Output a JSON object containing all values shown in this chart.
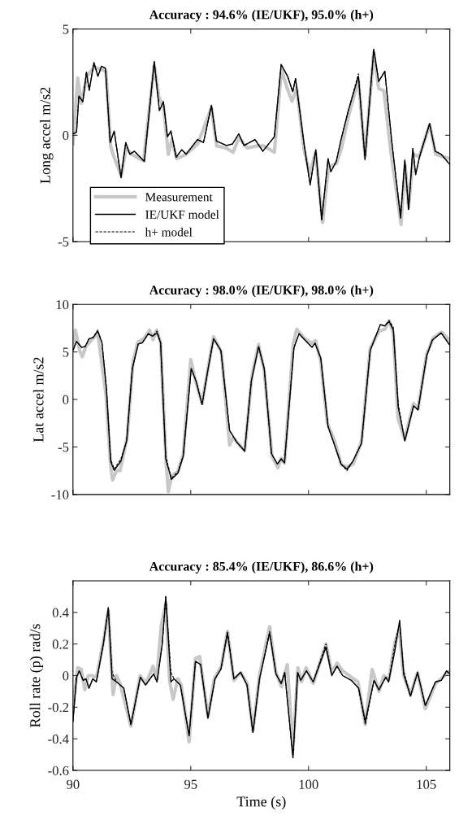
{
  "chart_data": [
    {
      "type": "line",
      "title": "Accuracy : 94.6% (IE/UKF), 95.0% (h+)",
      "ylabel": "Long accel m/s2",
      "xlim": [
        90,
        106
      ],
      "xticks": [
        90,
        95,
        100,
        105
      ],
      "ylim": [
        -5,
        5
      ],
      "yticks": [
        -5,
        0,
        5
      ],
      "tick_labels": "y",
      "legend": "bottom left",
      "grid": false,
      "series": [
        {
          "name": "Measurement",
          "color": "#c8c8c8",
          "line_style": "solid",
          "x": [
            90.0,
            90.2,
            90.35,
            90.6,
            90.9,
            91.2,
            91.4,
            91.6,
            91.7,
            92.05,
            92.25,
            92.5,
            93.0,
            93.45,
            93.65,
            93.85,
            94.05,
            94.2,
            94.4,
            94.8,
            95.3,
            95.88,
            96.1,
            96.5,
            96.8,
            97.05,
            97.4,
            97.8,
            98.1,
            98.55,
            98.85,
            99.1,
            99.3,
            99.5,
            99.8,
            100.05,
            100.3,
            100.6,
            100.85,
            101.2,
            101.4,
            101.7,
            102.12,
            102.4,
            102.77,
            102.98,
            103.2,
            103.5,
            103.93,
            104.1,
            104.25,
            104.45,
            104.7,
            105.15,
            105.4,
            105.7,
            106.0
          ],
          "values": [
            -0.4,
            2.7,
            1.5,
            2.8,
            3.2,
            3.1,
            3.0,
            -0.5,
            -0.9,
            -1.9,
            -0.6,
            -0.9,
            -1.2,
            3.3,
            1.8,
            1.3,
            -0.9,
            -0.2,
            -1.1,
            -0.9,
            -0.4,
            1.3,
            -0.5,
            -0.6,
            -0.8,
            -0.1,
            -0.6,
            -0.5,
            -0.5,
            -0.8,
            3.1,
            2.2,
            1.6,
            2.2,
            -0.6,
            -1.8,
            -0.8,
            -4.1,
            -1.5,
            -1.3,
            -0.6,
            0.9,
            2.6,
            -1.0,
            3.9,
            2.2,
            2.1,
            -0.8,
            -4.2,
            -1.4,
            -3.4,
            -0.9,
            -1.0,
            0.5,
            -0.9,
            -1.0,
            -1.1
          ]
        },
        {
          "name": "IE/UKF model",
          "color": "#000000",
          "line_style": "solid",
          "x": [
            90.0,
            90.15,
            90.25,
            90.42,
            90.57,
            90.69,
            90.89,
            91.06,
            91.21,
            91.38,
            91.58,
            91.75,
            92.04,
            92.24,
            92.41,
            92.61,
            93.03,
            93.45,
            93.67,
            93.84,
            94.01,
            94.16,
            94.38,
            94.62,
            94.8,
            95.29,
            95.54,
            95.88,
            96.09,
            96.52,
            96.77,
            97.04,
            97.26,
            97.73,
            98.06,
            98.55,
            98.84,
            99.11,
            99.33,
            99.45,
            99.82,
            100.07,
            100.31,
            100.56,
            100.83,
            100.95,
            101.18,
            101.38,
            101.69,
            102.12,
            102.4,
            102.77,
            102.98,
            103.24,
            103.54,
            103.91,
            104.09,
            104.25,
            104.43,
            104.55,
            104.71,
            105.14,
            105.38,
            105.63,
            106.0
          ],
          "values": [
            0.07,
            0.14,
            1.85,
            1.58,
            2.97,
            2.12,
            3.42,
            2.78,
            3.25,
            3.15,
            -0.34,
            0.2,
            -1.99,
            -0.34,
            -0.89,
            -0.75,
            -1.23,
            3.47,
            1.16,
            1.58,
            -0.07,
            0.2,
            -1.03,
            -0.68,
            -0.89,
            -0.2,
            -0.34,
            1.41,
            -0.27,
            -0.48,
            -0.41,
            0.07,
            -0.48,
            -0.2,
            -0.75,
            -0.07,
            3.33,
            2.78,
            2.05,
            2.67,
            -0.48,
            -2.33,
            -0.68,
            -3.97,
            -1.1,
            -1.71,
            -1.23,
            -0.2,
            1.16,
            2.78,
            -1.1,
            4.04,
            2.53,
            3.01,
            -0.34,
            -3.9,
            -1.16,
            -3.49,
            -0.62,
            -1.85,
            -1.03,
            0.55,
            -0.75,
            -0.89,
            -1.37
          ]
        },
        {
          "name": "h+ model",
          "color": "#000000",
          "line_style": "dashed",
          "x": [
            90.0,
            90.15,
            90.25,
            90.42,
            90.57,
            90.69,
            90.89,
            91.06,
            91.21,
            91.38,
            91.58,
            91.75,
            92.04,
            92.24,
            92.41,
            92.61,
            93.03,
            93.45,
            93.67,
            93.84,
            94.01,
            94.16,
            94.38,
            94.62,
            94.8,
            95.29,
            95.54,
            95.88,
            96.09,
            96.52,
            96.77,
            97.04,
            97.26,
            97.73,
            98.06,
            98.55,
            98.84,
            99.11,
            99.33,
            99.45,
            99.82,
            100.07,
            100.31,
            100.56,
            100.83,
            100.95,
            101.18,
            101.38,
            101.69,
            102.12,
            102.4,
            102.77,
            102.98,
            103.24,
            103.54,
            103.91,
            104.09,
            104.25,
            104.43,
            104.55,
            104.71,
            105.14,
            105.38,
            105.63,
            106.0
          ],
          "values": [
            0.07,
            0.14,
            1.85,
            1.58,
            2.97,
            2.12,
            3.42,
            2.78,
            3.25,
            3.15,
            -0.34,
            0.2,
            -1.99,
            -0.34,
            -0.89,
            -0.75,
            -1.23,
            3.47,
            1.16,
            1.58,
            -0.07,
            0.2,
            -1.03,
            -0.68,
            -0.89,
            -0.2,
            -0.34,
            1.41,
            -0.27,
            -0.48,
            -0.41,
            0.07,
            -0.48,
            -0.2,
            -0.75,
            -0.07,
            3.33,
            2.78,
            2.05,
            2.67,
            -0.48,
            -2.33,
            -0.68,
            -4.0,
            -1.1,
            -1.71,
            -1.23,
            -0.2,
            1.16,
            2.9,
            -1.2,
            4.04,
            2.53,
            3.01,
            -0.34,
            -3.8,
            -1.16,
            -3.49,
            -0.62,
            -1.85,
            -1.03,
            0.55,
            -0.75,
            -0.89,
            -1.37
          ]
        }
      ]
    },
    {
      "type": "line",
      "title": "Accuracy : 98.0% (IE/UKF), 98.0% (h+)",
      "ylabel": "Lat accel m/s2",
      "xlim": [
        90,
        106
      ],
      "xticks": [
        90,
        95,
        100,
        105
      ],
      "ylim": [
        -10,
        10
      ],
      "yticks": [
        -10,
        -5,
        0,
        5,
        10
      ],
      "tick_labels": "y",
      "grid": false,
      "series": [
        {
          "color": "#c8c8c8",
          "line_style": "solid",
          "x": [
            90.0,
            90.1,
            90.3,
            90.4,
            90.55,
            90.7,
            91.05,
            91.4,
            91.6,
            91.68,
            91.85,
            92.0,
            92.3,
            92.55,
            92.75,
            93.05,
            93.25,
            93.4,
            93.55,
            93.72,
            93.95,
            94.05,
            94.2,
            94.45,
            94.68,
            95.0,
            95.2,
            95.48,
            95.75,
            95.97,
            96.3,
            96.65,
            96.8,
            97.0,
            97.29,
            97.6,
            97.88,
            98.12,
            98.45,
            98.7,
            98.84,
            98.98,
            99.35,
            99.5,
            99.8,
            100.15,
            100.3,
            100.52,
            100.8,
            101.1,
            101.4,
            101.65,
            101.9,
            102.25,
            102.62,
            103.0,
            103.25,
            103.42,
            103.6,
            103.8,
            104.09,
            104.46,
            104.65,
            105.02,
            105.3,
            105.65,
            106.0
          ],
          "values": [
            5.5,
            7.3,
            5.0,
            4.5,
            5.6,
            6.0,
            7.0,
            0.5,
            -7.0,
            -8.5,
            -7.5,
            -7.5,
            -4.0,
            4.0,
            6.0,
            6.5,
            7.3,
            6.3,
            7.3,
            6.0,
            -6.5,
            -9.7,
            -8.0,
            -7.6,
            -5.8,
            4.2,
            2.0,
            -0.4,
            3.5,
            6.6,
            5.0,
            -4.8,
            -4.0,
            -4.6,
            -5.4,
            2.5,
            5.8,
            3.0,
            -6.0,
            -7.2,
            -6.2,
            -6.7,
            5.8,
            7.4,
            6.5,
            5.9,
            6.2,
            4.0,
            -2.5,
            -4.3,
            -6.9,
            -7.1,
            -6.8,
            -4.4,
            5.4,
            7.2,
            7.4,
            8.3,
            7.0,
            -2.0,
            -4.2,
            -0.4,
            -1.0,
            4.8,
            6.5,
            7.1,
            6.2
          ]
        },
        {
          "color": "#000000",
          "line_style": "solid",
          "x": [
            90.0,
            90.15,
            90.37,
            90.52,
            90.68,
            90.86,
            91.05,
            91.23,
            91.42,
            91.6,
            91.75,
            92.03,
            92.28,
            92.52,
            92.77,
            92.95,
            93.2,
            93.38,
            93.57,
            93.72,
            93.94,
            94.18,
            94.46,
            94.68,
            95.02,
            95.23,
            95.48,
            95.72,
            95.97,
            96.28,
            96.65,
            96.95,
            97.29,
            97.57,
            97.88,
            98.12,
            98.43,
            98.68,
            98.84,
            98.98,
            99.38,
            99.6,
            99.85,
            100.15,
            100.28,
            100.52,
            100.83,
            101.08,
            101.38,
            101.63,
            101.88,
            102.25,
            102.62,
            103.05,
            103.23,
            103.42,
            103.6,
            103.81,
            104.09,
            104.46,
            104.65,
            105.02,
            105.26,
            105.63,
            106.0
          ],
          "values": [
            5.16,
            6.11,
            5.49,
            5.57,
            6.39,
            6.52,
            7.2,
            5.98,
            1.09,
            -6.52,
            -7.47,
            -6.52,
            -4.35,
            3.26,
            5.84,
            5.98,
            6.93,
            6.66,
            7.01,
            5.98,
            -6.25,
            -8.42,
            -7.74,
            -5.98,
            3.26,
            1.9,
            -0.54,
            2.99,
            6.39,
            5.16,
            -3.26,
            -4.48,
            -5.43,
            1.9,
            5.57,
            3.26,
            -5.71,
            -6.79,
            -6.25,
            -6.66,
            5.43,
            6.93,
            6.25,
            5.49,
            5.92,
            4.35,
            -2.85,
            -4.62,
            -6.79,
            -7.34,
            -6.52,
            -4.62,
            5.16,
            7.88,
            7.74,
            8.21,
            7.34,
            -0.82,
            -4.35,
            -0.68,
            -1.09,
            4.62,
            6.25,
            7.01,
            5.71
          ]
        },
        {
          "color": "#000000",
          "line_style": "dashed",
          "x": [
            90.0,
            90.15,
            90.37,
            90.52,
            90.68,
            90.86,
            91.05,
            91.23,
            91.42,
            91.6,
            91.75,
            92.03,
            92.28,
            92.52,
            92.77,
            92.95,
            93.2,
            93.38,
            93.57,
            93.72,
            93.94,
            94.18,
            94.46,
            94.68,
            95.02,
            95.23,
            95.48,
            95.72,
            95.97,
            96.28,
            96.65,
            96.95,
            97.29,
            97.57,
            97.88,
            98.12,
            98.43,
            98.68,
            98.84,
            98.98,
            99.38,
            99.6,
            99.85,
            100.15,
            100.28,
            100.52,
            100.83,
            101.08,
            101.38,
            101.63,
            101.88,
            102.25,
            102.62,
            103.05,
            103.23,
            103.42,
            103.6,
            103.81,
            104.09,
            104.46,
            104.65,
            105.02,
            105.26,
            105.63,
            106.0
          ],
          "values": [
            5.16,
            6.11,
            5.49,
            5.57,
            6.39,
            6.52,
            7.3,
            5.98,
            1.3,
            -6.3,
            -7.3,
            -6.3,
            -4.35,
            3.26,
            5.84,
            5.98,
            6.93,
            6.66,
            7.2,
            5.98,
            -6.0,
            -8.3,
            -7.6,
            -5.9,
            3.26,
            1.9,
            -0.54,
            2.99,
            6.39,
            5.16,
            -3.26,
            -4.48,
            -5.43,
            1.9,
            5.57,
            3.26,
            -5.71,
            -6.79,
            -6.25,
            -6.66,
            5.43,
            6.93,
            6.25,
            5.49,
            5.92,
            4.35,
            -2.85,
            -4.62,
            -6.79,
            -7.5,
            -6.52,
            -4.62,
            5.16,
            7.88,
            7.74,
            8.3,
            7.6,
            -0.5,
            -4.35,
            -0.68,
            -1.09,
            4.62,
            6.25,
            7.01,
            5.71
          ]
        }
      ]
    },
    {
      "type": "line",
      "title": "Accuracy : 85.4% (IE/UKF), 86.6% (h+)",
      "xlabel": "Time (s)",
      "ylabel": "Roll rate (p) rad/s",
      "xlim": [
        90,
        106
      ],
      "xticks": [
        90,
        95,
        100,
        105
      ],
      "ylim": [
        -0.6,
        0.6
      ],
      "yticks": [
        -0.6,
        -0.4,
        -0.2,
        0,
        0.2,
        0.4
      ],
      "grid": false,
      "series": [
        {
          "color": "#c8c8c8",
          "line_style": "solid",
          "x": [
            90.0,
            90.2,
            90.35,
            90.5,
            90.65,
            90.8,
            91.0,
            91.3,
            91.5,
            91.7,
            91.85,
            92.0,
            92.46,
            92.85,
            93.1,
            93.4,
            93.55,
            93.75,
            93.94,
            94.1,
            94.25,
            94.45,
            94.6,
            94.93,
            95.2,
            95.38,
            95.73,
            96.0,
            96.3,
            96.56,
            96.83,
            97.12,
            97.4,
            97.64,
            97.92,
            98.35,
            98.6,
            98.85,
            98.99,
            99.1,
            99.34,
            99.55,
            99.7,
            99.9,
            100.2,
            100.74,
            100.99,
            101.21,
            101.45,
            101.82,
            102.1,
            102.41,
            102.7,
            102.99,
            103.2,
            103.4,
            103.67,
            103.85,
            104.04,
            104.33,
            104.63,
            104.96,
            105.4,
            105.7,
            106.0
          ],
          "values": [
            -0.2,
            0.05,
            0.04,
            -0.09,
            0.0,
            0.0,
            -0.01,
            0.22,
            0.41,
            -0.12,
            0.0,
            -0.05,
            -0.32,
            0.0,
            -0.05,
            0.06,
            -0.02,
            0.32,
            0.46,
            -0.03,
            -0.15,
            -0.02,
            -0.06,
            -0.42,
            0.11,
            0.12,
            -0.26,
            -0.02,
            0.06,
            0.28,
            -0.03,
            0.02,
            -0.05,
            -0.35,
            0.0,
            0.31,
            0.03,
            -0.07,
            0.01,
            0.07,
            -0.47,
            0.05,
            -0.04,
            0.05,
            -0.05,
            0.2,
            0.02,
            0.08,
            0.03,
            -0.01,
            -0.04,
            -0.31,
            0.04,
            -0.1,
            0.0,
            -0.03,
            0.21,
            0.3,
            0.0,
            -0.12,
            0.02,
            -0.21,
            -0.05,
            -0.01,
            0.03
          ]
        },
        {
          "color": "#000000",
          "line_style": "solid",
          "x": [
            90.0,
            90.15,
            90.27,
            90.43,
            90.55,
            90.68,
            90.84,
            90.99,
            91.29,
            91.5,
            91.66,
            91.85,
            92.16,
            92.46,
            92.86,
            93.08,
            93.42,
            93.57,
            93.79,
            93.94,
            94.16,
            94.29,
            94.56,
            94.93,
            95.2,
            95.42,
            95.73,
            96.03,
            96.28,
            96.56,
            96.83,
            97.12,
            97.39,
            97.64,
            97.92,
            98.35,
            98.62,
            98.84,
            98.99,
            99.34,
            99.54,
            99.67,
            99.91,
            100.2,
            100.74,
            100.99,
            101.21,
            101.45,
            101.82,
            102.13,
            102.41,
            102.78,
            102.99,
            103.28,
            103.4,
            103.67,
            103.87,
            104.04,
            104.33,
            104.63,
            104.96,
            105.39,
            105.64,
            105.86,
            106.0
          ],
          "values": [
            -0.29,
            -0.01,
            0.03,
            -0.03,
            -0.02,
            -0.08,
            -0.02,
            -0.04,
            0.2,
            0.43,
            -0.02,
            -0.04,
            -0.08,
            -0.31,
            -0.01,
            -0.06,
            0.01,
            -0.04,
            0.2,
            0.5,
            -0.04,
            -0.02,
            -0.06,
            -0.38,
            0.09,
            0.07,
            -0.27,
            -0.02,
            0.04,
            0.27,
            -0.02,
            0.02,
            -0.06,
            -0.36,
            -0.02,
            0.27,
            0.01,
            -0.05,
            0.02,
            -0.52,
            0.02,
            -0.03,
            0.03,
            -0.04,
            0.18,
            0.0,
            0.06,
            0.0,
            -0.03,
            -0.08,
            -0.29,
            -0.03,
            -0.09,
            -0.01,
            -0.04,
            0.16,
            0.35,
            0.01,
            -0.13,
            0.02,
            -0.19,
            -0.04,
            -0.03,
            0.03,
            0.01
          ]
        },
        {
          "color": "#000000",
          "line_style": "dashed",
          "x": [
            90.0,
            90.15,
            90.27,
            90.43,
            90.55,
            90.68,
            90.84,
            90.99,
            91.29,
            91.5,
            91.66,
            91.85,
            92.16,
            92.46,
            92.86,
            93.08,
            93.42,
            93.57,
            93.79,
            93.94,
            94.16,
            94.29,
            94.56,
            94.93,
            95.2,
            95.42,
            95.73,
            96.03,
            96.28,
            96.56,
            96.83,
            97.12,
            97.39,
            97.64,
            97.92,
            98.35,
            98.62,
            98.84,
            98.99,
            99.34,
            99.54,
            99.67,
            99.91,
            100.2,
            100.74,
            100.99,
            101.21,
            101.45,
            101.82,
            102.13,
            102.41,
            102.78,
            102.99,
            103.28,
            103.4,
            103.67,
            103.87,
            104.04,
            104.33,
            104.63,
            104.96,
            105.39,
            105.64,
            105.86,
            106.0
          ],
          "values": [
            -0.29,
            -0.01,
            0.03,
            -0.03,
            -0.02,
            -0.08,
            -0.02,
            -0.04,
            0.2,
            0.43,
            0.02,
            -0.04,
            -0.08,
            -0.31,
            -0.01,
            -0.06,
            0.01,
            -0.04,
            0.2,
            0.5,
            0.02,
            -0.02,
            -0.06,
            -0.38,
            0.09,
            0.07,
            -0.27,
            -0.02,
            0.04,
            0.28,
            -0.02,
            0.02,
            -0.06,
            -0.36,
            -0.02,
            0.28,
            0.01,
            -0.05,
            0.02,
            -0.52,
            0.02,
            -0.03,
            0.03,
            -0.04,
            0.2,
            0.0,
            0.06,
            0.0,
            -0.03,
            -0.08,
            -0.31,
            -0.03,
            -0.09,
            -0.01,
            -0.04,
            0.2,
            0.33,
            0.03,
            -0.13,
            0.02,
            -0.19,
            -0.04,
            -0.03,
            0.03,
            0.01
          ]
        }
      ]
    }
  ]
}
